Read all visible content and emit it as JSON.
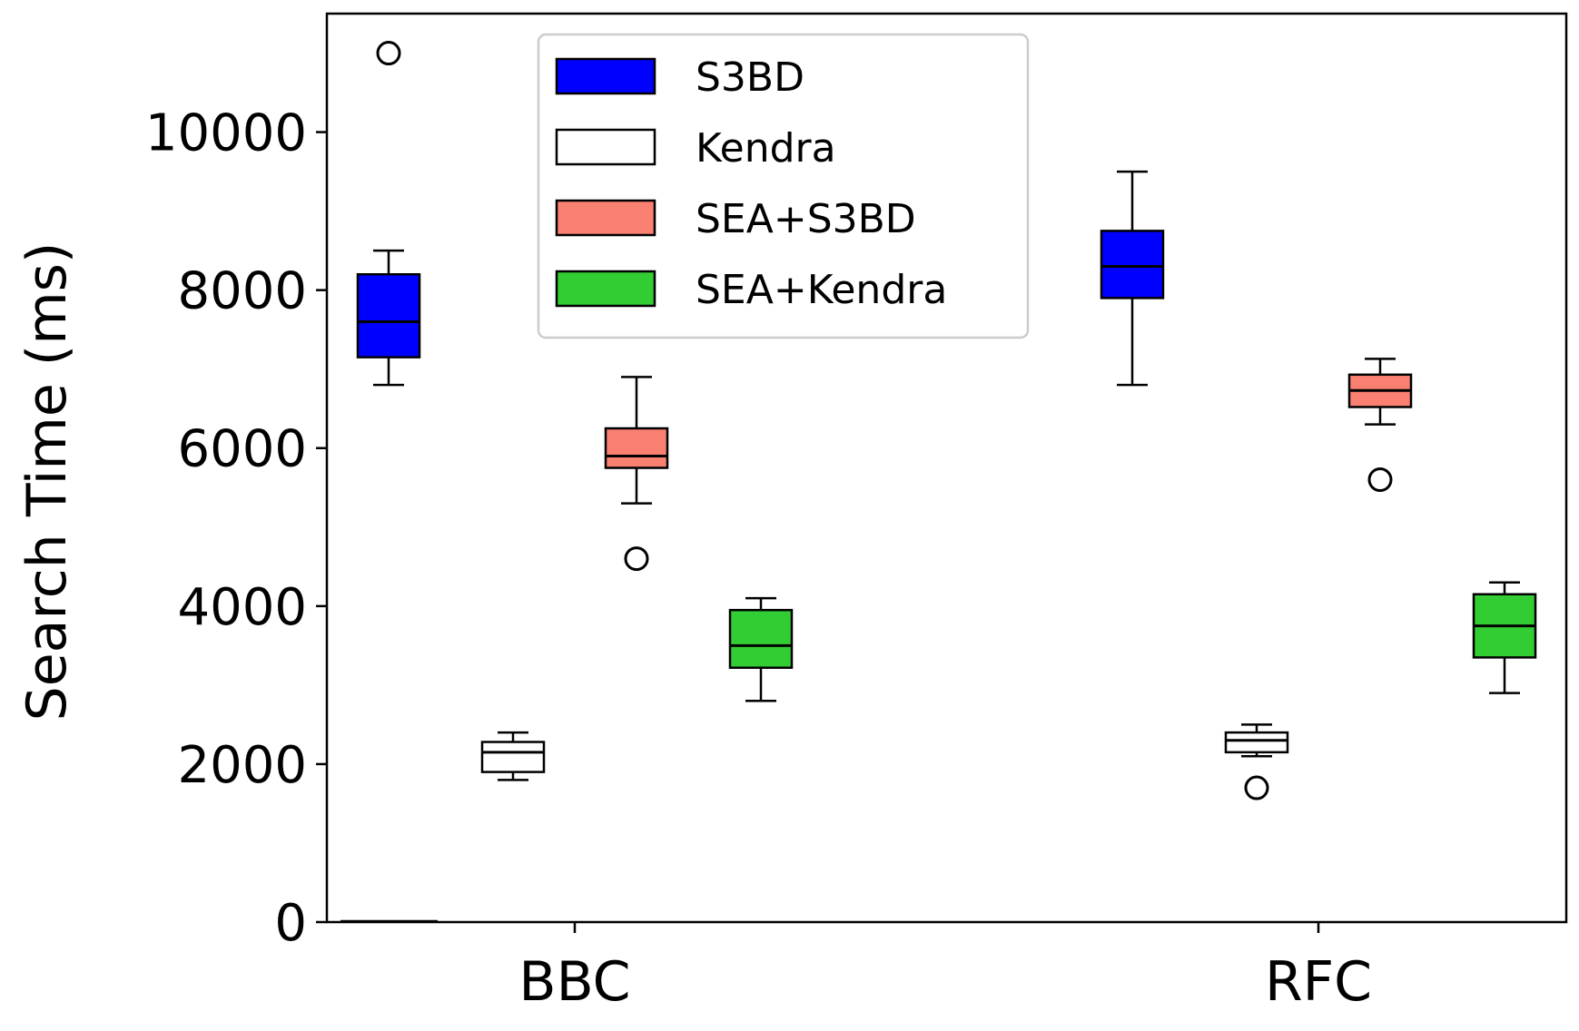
{
  "chart_data": {
    "type": "boxplot",
    "title": "",
    "xlabel": "",
    "ylabel": "Search Time (ms)",
    "ylim": [
      0,
      11500
    ],
    "yticks": [
      0,
      2000,
      4000,
      6000,
      8000,
      10000
    ],
    "ytick_labels": [
      "0",
      "2000",
      "4000",
      "6000",
      "8000",
      "10000"
    ],
    "categories": [
      "BBC",
      "RFC"
    ],
    "grid": false,
    "legend_position": "top-center",
    "series": [
      {
        "name": "S3BD",
        "color": "#0000ff",
        "boxes": [
          {
            "whisker_low": 6800,
            "q1": 7150,
            "median": 7600,
            "q3": 8200,
            "whisker_high": 8500,
            "outliers": [
              11000
            ]
          },
          {
            "whisker_low": 6800,
            "q1": 7900,
            "median": 8300,
            "q3": 8750,
            "whisker_high": 9500,
            "outliers": []
          }
        ]
      },
      {
        "name": "Kendra",
        "color": "#ffffff",
        "boxes": [
          {
            "whisker_low": 1800,
            "q1": 1900,
            "median": 2150,
            "q3": 2280,
            "whisker_high": 2400,
            "outliers": []
          },
          {
            "whisker_low": 2100,
            "q1": 2150,
            "median": 2300,
            "q3": 2400,
            "whisker_high": 2500,
            "outliers": [
              1700
            ]
          }
        ]
      },
      {
        "name": "SEA+S3BD",
        "color": "#fa8072",
        "boxes": [
          {
            "whisker_low": 5300,
            "q1": 5750,
            "median": 5900,
            "q3": 6250,
            "whisker_high": 6900,
            "outliers": [
              4600
            ]
          },
          {
            "whisker_low": 6300,
            "q1": 6520,
            "median": 6730,
            "q3": 6930,
            "whisker_high": 7130,
            "outliers": [
              5600
            ]
          }
        ]
      },
      {
        "name": "SEA+Kendra",
        "color": "#32cd32",
        "boxes": [
          {
            "whisker_low": 2800,
            "q1": 3220,
            "median": 3500,
            "q3": 3950,
            "whisker_high": 4100,
            "outliers": []
          },
          {
            "whisker_low": 2900,
            "q1": 3350,
            "median": 3750,
            "q3": 4150,
            "whisker_high": 4300,
            "outliers": []
          }
        ]
      }
    ]
  }
}
